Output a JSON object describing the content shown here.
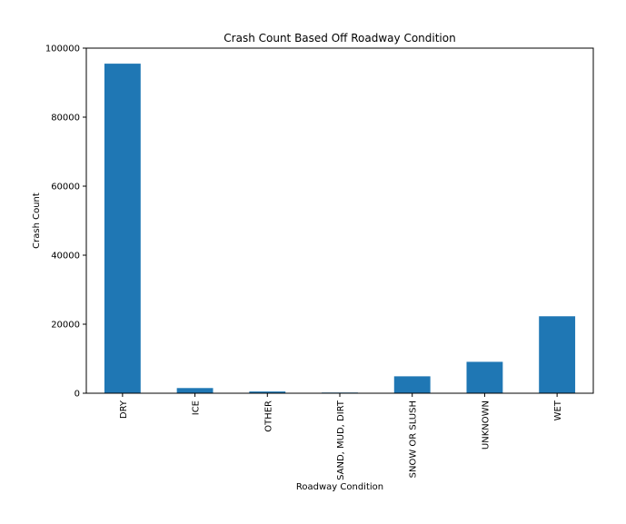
{
  "chart_data": {
    "type": "bar",
    "title": "Crash Count Based Off Roadway Condition",
    "xlabel": "Roadway Condition",
    "ylabel": "Crash Count",
    "categories": [
      "DRY",
      "ICE",
      "OTHER",
      "SAND, MUD, DIRT",
      "SNOW OR SLUSH",
      "UNKNOWN",
      "WET"
    ],
    "values": [
      95500,
      1500,
      500,
      200,
      4900,
      9100,
      22300
    ],
    "ylim": [
      0,
      100000
    ],
    "yticks": [
      0,
      20000,
      40000,
      60000,
      80000,
      100000
    ],
    "ytick_labels": [
      "0",
      "20000",
      "40000",
      "60000",
      "80000",
      "100000"
    ],
    "grid": false,
    "legend": "none",
    "bar_color": "#1f77b4"
  }
}
